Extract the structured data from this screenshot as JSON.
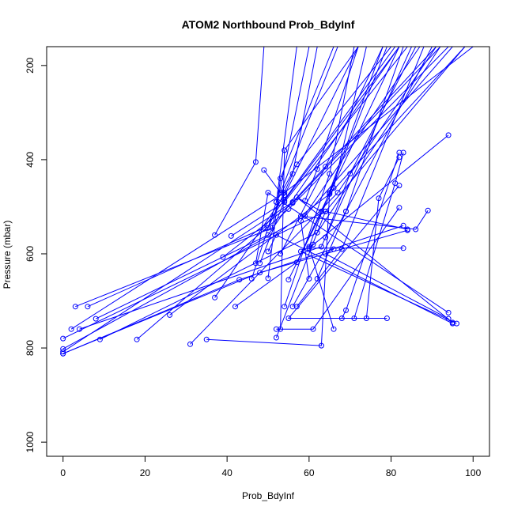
{
  "chart_data": {
    "type": "line",
    "title": "ATOM2 Northbound Prob_BdyInf",
    "xlabel": "Prob_BdyInf",
    "ylabel": "Pressure (mbar)",
    "xlim": [
      -4,
      104
    ],
    "ylim": [
      1030,
      160
    ],
    "y_axis_inverted": true,
    "x_ticks": [
      "0",
      "20",
      "40",
      "60",
      "80",
      "100"
    ],
    "y_ticks": [
      "200",
      "400",
      "600",
      "800",
      "1000"
    ],
    "grid": false,
    "legend": "none",
    "color": "#0000ff",
    "marker": "open-circle",
    "series": [
      {
        "x": [
          0,
          56,
          91
        ],
        "y": [
          808,
          490,
          160
        ]
      },
      {
        "x": [
          0,
          59,
          95
        ],
        "y": [
          802,
          520,
          160
        ]
      },
      {
        "x": [
          0,
          64,
          98
        ],
        "y": [
          780,
          510,
          160
        ]
      },
      {
        "x": [
          2,
          54,
          100
        ],
        "y": [
          760,
          470,
          160
        ]
      },
      {
        "x": [
          3,
          51,
          60
        ],
        "y": [
          712,
          545,
          160
        ]
      },
      {
        "x": [
          4,
          63,
          85
        ],
        "y": [
          760,
          585,
          160
        ]
      },
      {
        "x": [
          6,
          49,
          81
        ],
        "y": [
          712,
          545,
          160
        ]
      },
      {
        "x": [
          8,
          50,
          82
        ],
        "y": [
          738,
          560,
          160
        ]
      },
      {
        "x": [
          9,
          62,
          92
        ],
        "y": [
          782,
          555,
          160
        ]
      },
      {
        "x": [
          18,
          55,
          94
        ],
        "y": [
          782,
          505,
          160
        ]
      },
      {
        "x": [
          26,
          65,
          98
        ],
        "y": [
          730,
          473,
          160
        ]
      },
      {
        "x": [
          31,
          67,
          91
        ],
        "y": [
          792,
          470,
          160
        ]
      },
      {
        "x": [
          35,
          63,
          65,
          79
        ],
        "y": [
          782,
          795,
          470,
          160
        ]
      },
      {
        "x": [
          37,
          54,
          72
        ],
        "y": [
          693,
          475,
          160
        ]
      },
      {
        "x": [
          39,
          56,
          92
        ],
        "y": [
          607,
          492,
          160
        ]
      },
      {
        "x": [
          37,
          47,
          49
        ],
        "y": [
          560,
          405,
          160
        ]
      },
      {
        "x": [
          41,
          54,
          84
        ],
        "y": [
          562,
          490,
          160
        ]
      },
      {
        "x": [
          42,
          57,
          82
        ],
        "y": [
          712,
          618,
          160
        ]
      },
      {
        "x": [
          46,
          52,
          57
        ],
        "y": [
          653,
          490,
          160
        ]
      },
      {
        "x": [
          48,
          54,
          82
        ],
        "y": [
          620,
          487,
          160
        ]
      },
      {
        "x": [
          49,
          53,
          67
        ],
        "y": [
          422,
          470,
          160
        ]
      },
      {
        "x": [
          50,
          53,
          66
        ],
        "y": [
          652,
          440,
          160
        ]
      },
      {
        "x": [
          50,
          56,
          62
        ],
        "y": [
          545,
          430,
          160
        ]
      },
      {
        "x": [
          52,
          57,
          80
        ],
        "y": [
          490,
          410,
          160
        ]
      },
      {
        "x": [
          53,
          54,
          72
        ],
        "y": [
          760,
          380,
          160
        ]
      },
      {
        "x": [
          53,
          64,
          78
        ],
        "y": [
          600,
          415,
          160
        ]
      },
      {
        "x": [
          54,
          65,
          71
        ],
        "y": [
          712,
          430,
          160
        ]
      },
      {
        "x": [
          55,
          66,
          74
        ],
        "y": [
          655,
          460,
          160
        ]
      },
      {
        "x": [
          56,
          69,
          83
        ],
        "y": [
          712,
          510,
          160
        ]
      },
      {
        "x": [
          57,
          68,
          88
        ],
        "y": [
          712,
          590,
          160
        ]
      },
      {
        "x": [
          59,
          62,
          72
        ],
        "y": [
          487,
          420,
          160
        ]
      },
      {
        "x": [
          60,
          58,
          87
        ],
        "y": [
          653,
          530,
          160
        ]
      },
      {
        "x": [
          62,
          69,
          90
        ],
        "y": [
          653,
          510,
          160
        ]
      },
      {
        "x": [
          64,
          70,
          86
        ],
        "y": [
          565,
          430,
          160
        ]
      },
      {
        "x": [
          66,
          60,
          78
        ],
        "y": [
          760,
          585,
          160
        ]
      },
      {
        "x": [
          68,
          69,
          82
        ],
        "y": [
          737,
          720,
          385
        ]
      },
      {
        "x": [
          71,
          81,
          83
        ],
        "y": [
          737,
          450,
          385
        ]
      },
      {
        "x": [
          74,
          77,
          82
        ],
        "y": [
          737,
          482,
          395
        ]
      },
      {
        "x": [
          79,
          55,
          82
        ],
        "y": [
          737,
          737,
          455
        ]
      },
      {
        "x": [
          52,
          61,
          82
        ],
        "y": [
          760,
          760,
          502
        ]
      },
      {
        "x": [
          52,
          64,
          84
        ],
        "y": [
          778,
          510,
          548
        ]
      },
      {
        "x": [
          58,
          86,
          89
        ],
        "y": [
          520,
          548,
          508
        ]
      },
      {
        "x": [
          83,
          60,
          94
        ],
        "y": [
          588,
          588,
          348
        ]
      },
      {
        "x": [
          94,
          50,
          47
        ],
        "y": [
          725,
          470,
          620
        ]
      },
      {
        "x": [
          95,
          52,
          50
        ],
        "y": [
          748,
          560,
          595
        ]
      },
      {
        "x": [
          96,
          58,
          61
        ],
        "y": [
          748,
          595,
          580
        ]
      },
      {
        "x": [
          95,
          57,
          63
        ],
        "y": [
          746,
          480,
          510
        ]
      },
      {
        "x": [
          94,
          64,
          66
        ],
        "y": [
          738,
          600,
          590
        ]
      },
      {
        "x": [
          0,
          43,
          83
        ],
        "y": [
          812,
          655,
          540
        ]
      },
      {
        "x": [
          0,
          48,
          84
        ],
        "y": [
          812,
          640,
          550
        ]
      }
    ]
  }
}
